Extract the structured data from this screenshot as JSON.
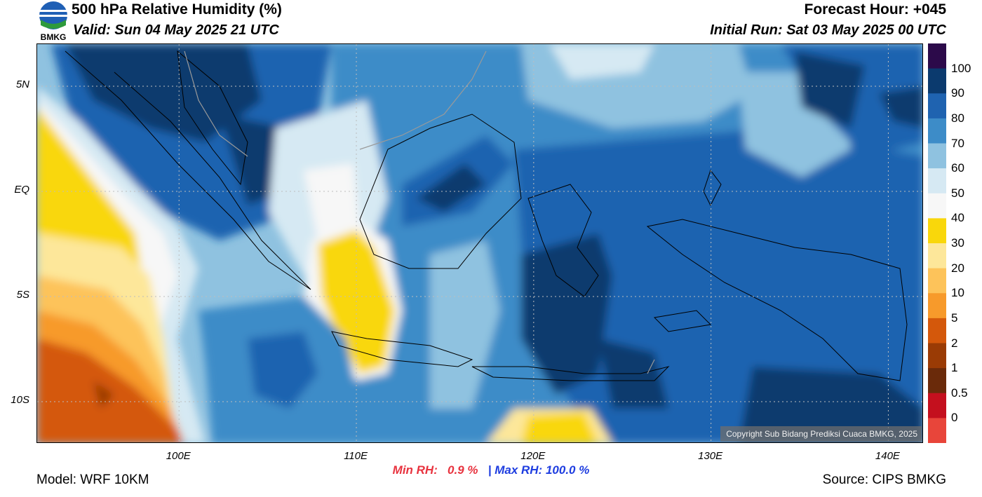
{
  "header": {
    "title": "500 hPa Relative Humidity (%)",
    "valid": "Valid: Sun 04 May 2025 21 UTC",
    "forecast_hour": "Forecast Hour: +045",
    "initial_run": "Initial Run: Sat 03 May 2025 00 UTC",
    "logo_text": "BMKG"
  },
  "map": {
    "variable": "Relative Humidity",
    "level": "500 hPa",
    "extent": {
      "lon_min": 92,
      "lon_max": 142,
      "lat_min": -12,
      "lat_max": 7
    },
    "lat_ticks": [
      {
        "value": 5,
        "label": "5N"
      },
      {
        "value": 0,
        "label": "EQ"
      },
      {
        "value": -5,
        "label": "5S"
      },
      {
        "value": -10,
        "label": "10S"
      }
    ],
    "lon_ticks": [
      {
        "value": 100,
        "label": "100E"
      },
      {
        "value": 110,
        "label": "110E"
      },
      {
        "value": 120,
        "label": "120E"
      },
      {
        "value": 130,
        "label": "130E"
      },
      {
        "value": 140,
        "label": "140E"
      }
    ],
    "gridlines": "dotted"
  },
  "colorbar": {
    "labels": [
      "100",
      "90",
      "80",
      "70",
      "60",
      "50",
      "40",
      "30",
      "20",
      "10",
      "5",
      "2",
      "1",
      "0.5",
      "0"
    ],
    "colors": [
      "#2c0a4a",
      "#0b3a6e",
      "#1f63b0",
      "#3d8cc8",
      "#8fc2e0",
      "#d6e9f3",
      "#f7f7f7",
      "#f9d70b",
      "#fde79a",
      "#fdc35a",
      "#f79a2b",
      "#d4580b",
      "#9a3b05",
      "#6a2a0a",
      "#c4101e",
      "#e8453a"
    ]
  },
  "stats": {
    "min_label": "Min RH:",
    "min_value": "0.9 %",
    "separator": "|",
    "max_label": "Max RH:",
    "max_value": "100.0 %"
  },
  "footer": {
    "model": "Model: WRF 10KM",
    "source": "Source: CIPS BMKG",
    "copyright": "Copyright Sub Bidang Prediksi Cuaca BMKG, 2025"
  }
}
